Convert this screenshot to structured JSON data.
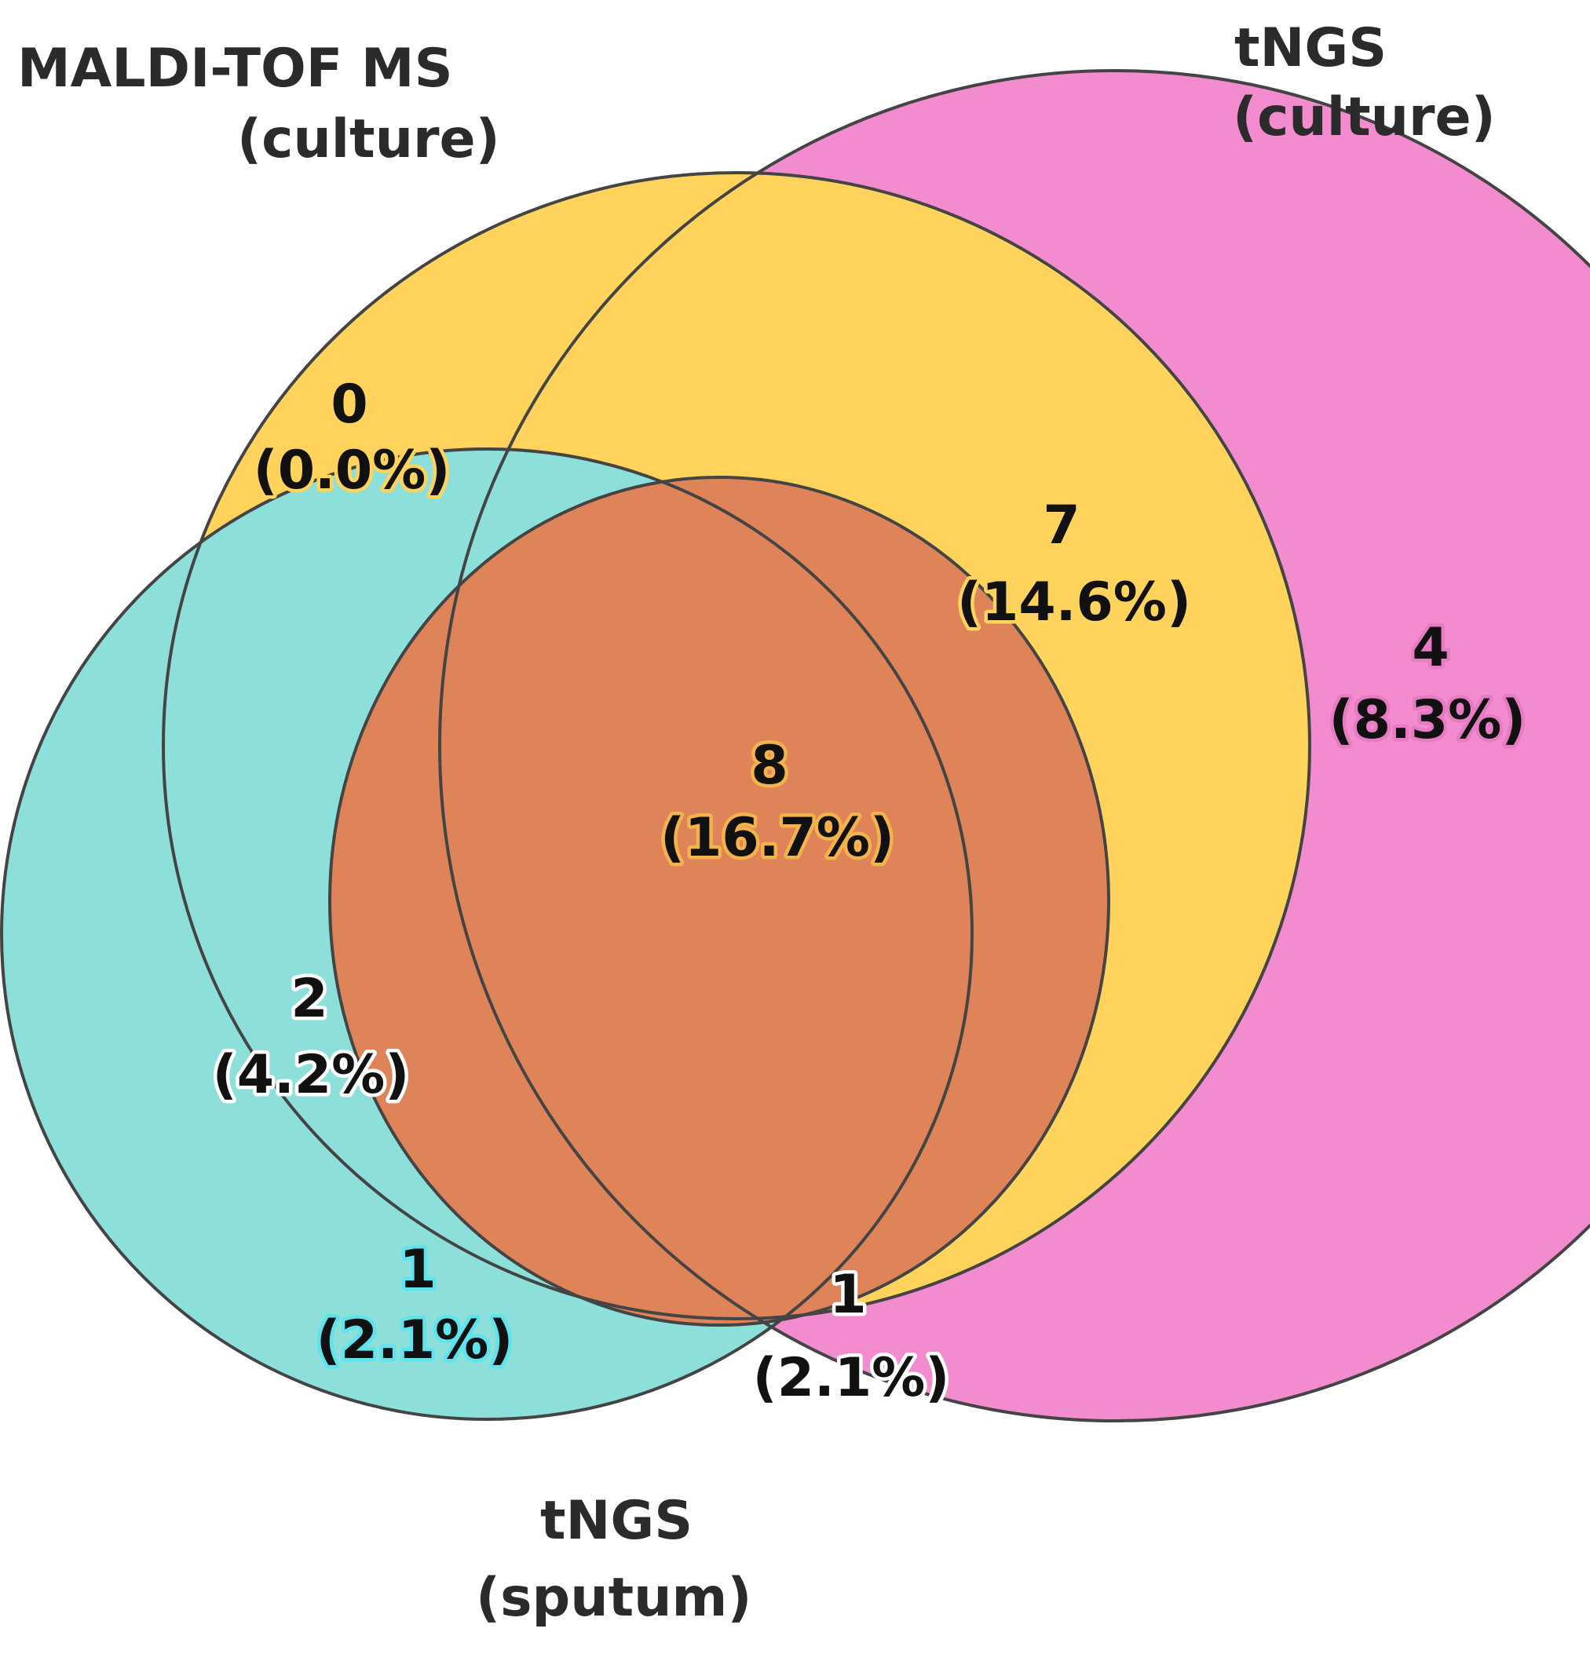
{
  "sets": [
    {
      "id": "maldi",
      "label_lines": [
        "MALDI-TOF MS",
        "(culture)"
      ],
      "color": "#ffd35c"
    },
    {
      "id": "tngs_culture",
      "label_lines": [
        "tNGS",
        "(culture)"
      ],
      "color": "#f28ccf"
    },
    {
      "id": "tngs_sputum",
      "label_lines": [
        "tNGS",
        "(sputum)"
      ],
      "color": "#8de0da"
    }
  ],
  "regions": [
    {
      "id": "maldi_only",
      "sets": [
        "maldi"
      ],
      "count": "0",
      "pct": "(0.0%)",
      "halo": "#ffd35c"
    },
    {
      "id": "maldi_tngs_culture",
      "sets": [
        "maldi",
        "tngs_culture"
      ],
      "count": "7",
      "pct": "(14.6%)",
      "halo": "#ffd35c"
    },
    {
      "id": "tngs_culture_only",
      "sets": [
        "tngs_culture"
      ],
      "count": "4",
      "pct": "(8.3%)",
      "halo": "#e87cc4"
    },
    {
      "id": "all_three",
      "sets": [
        "maldi",
        "tngs_culture",
        "tngs_sputum"
      ],
      "count": "8",
      "pct": "(16.7%)",
      "halo": "#f4b24a"
    },
    {
      "id": "maldi_tngs_sputum",
      "sets": [
        "maldi",
        "tngs_sputum"
      ],
      "count": "2",
      "pct": "(4.2%)",
      "halo": "#ffffff"
    },
    {
      "id": "tngs_sputum_only",
      "sets": [
        "tngs_sputum"
      ],
      "count": "1",
      "pct": "(2.1%)",
      "halo": "#5fe3ee"
    },
    {
      "id": "tngs_culture_tngs_sputum",
      "sets": [
        "tngs_culture",
        "tngs_sputum"
      ],
      "count": "1",
      "pct": "(2.1%)",
      "halo": "#ffffff"
    }
  ],
  "colors": {
    "maldi": "#ffd35c",
    "tngs_culture": "#f28ccf",
    "tngs_sputum": "#8de0da",
    "intersection_center": "#de8458",
    "outline": "#444444"
  }
}
